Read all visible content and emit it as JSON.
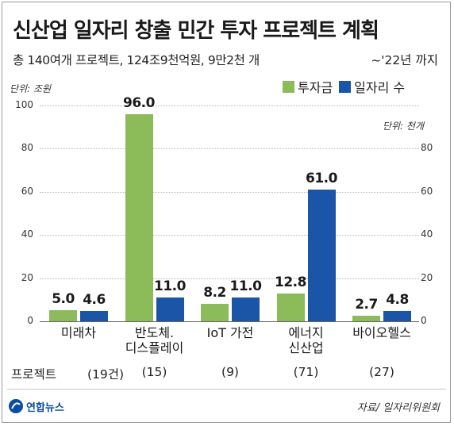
{
  "title": "신산업 일자리 창출 민간 투자 프로젝트 계획",
  "subtitle": "총 140여개 프로젝트, 124조9천억원, 9만2천 개",
  "date_note": "~'22년 까지",
  "colors": {
    "investment": "#8cbb5a",
    "jobs": "#1b55a7"
  },
  "chart_data": {
    "type": "bar",
    "categories": [
      "미래차",
      "반도체.\n디스플레이",
      "IoT 가전",
      "에너지\n신산업",
      "바이오헬스"
    ],
    "series": [
      {
        "name": "투자금",
        "values": [
          5.0,
          96.0,
          8.2,
          12.8,
          2.7
        ],
        "labels": [
          "5.0",
          "96.0",
          "8.2",
          "12.8",
          "2.7"
        ],
        "axis": "left",
        "unit": "조원"
      },
      {
        "name": "일자리 수",
        "values": [
          4.6,
          11.0,
          11.0,
          61.0,
          4.8
        ],
        "labels": [
          "4.6",
          "11.0",
          "11.0",
          "61.0",
          "4.8"
        ],
        "axis": "right",
        "unit": "천개"
      }
    ],
    "ylim": [
      0,
      100
    ],
    "y_ticks": [
      "100",
      "80",
      "60",
      "40",
      "20",
      "0"
    ],
    "y2_ticks": [
      "80",
      "60",
      "40",
      "20",
      "0"
    ],
    "ylabel": "단위: 조원",
    "y2label": "단위: 천개",
    "legend_placement": "top-right",
    "grid": false
  },
  "projects": {
    "label": "프로젝트",
    "counts": [
      "(19건)",
      "(15)",
      "(9)",
      "(71)",
      "(27)"
    ]
  },
  "source": "자료/ 일자리위원회",
  "logo_text": "연합뉴스"
}
